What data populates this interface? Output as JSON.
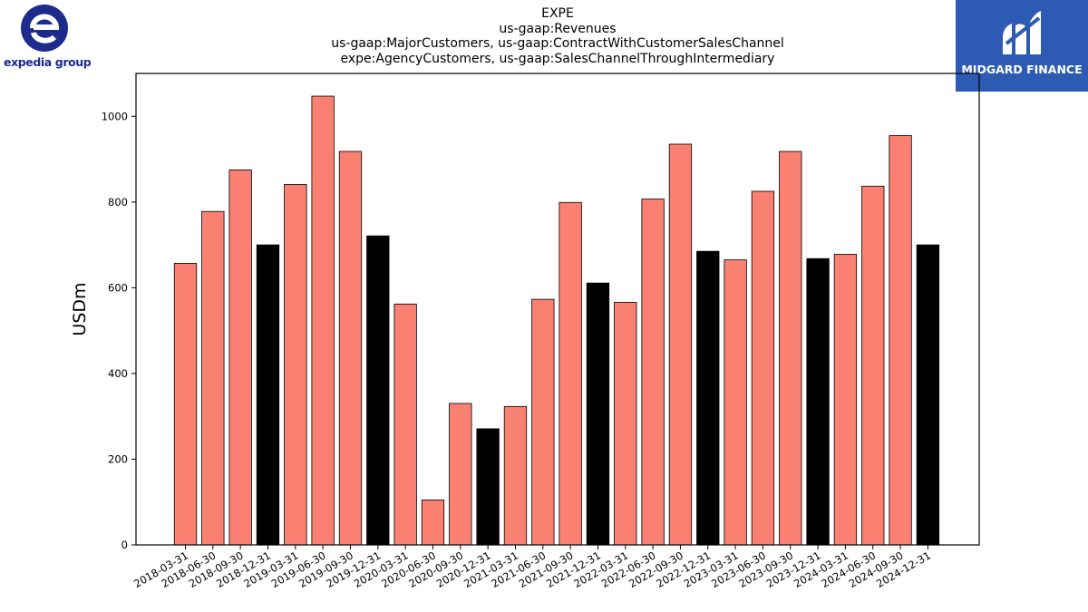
{
  "header": {
    "title_lines": [
      "EXPE",
      "us-gaap:Revenues",
      "us-gaap:MajorCustomers, us-gaap:ContractWithCustomerSalesChannel",
      "expe:AgencyCustomers, us-gaap:SalesChannelThroughIntermediary"
    ]
  },
  "logos": {
    "left": {
      "text": "expedia group",
      "color": "#1c2b8c"
    },
    "right": {
      "text": "MIDGARD FINANCE",
      "color": "#2d5bb3"
    }
  },
  "chart_data": {
    "type": "bar",
    "ylabel": "USDm",
    "ylim": [
      0,
      1100
    ],
    "yticks": [
      0,
      200,
      400,
      600,
      800,
      1000
    ],
    "grid": false,
    "colors": {
      "quarter": "#fa8072",
      "year_end": "#000000"
    },
    "categories": [
      "2018-03-31",
      "2018-06-30",
      "2018-09-30",
      "2018-12-31",
      "2019-03-31",
      "2019-06-30",
      "2019-09-30",
      "2019-12-31",
      "2020-03-31",
      "2020-06-30",
      "2020-09-30",
      "2020-12-31",
      "2021-03-31",
      "2021-06-30",
      "2021-09-30",
      "2021-12-31",
      "2022-03-31",
      "2022-06-30",
      "2022-09-30",
      "2022-12-31",
      "2023-03-31",
      "2023-06-30",
      "2023-09-30",
      "2023-12-31",
      "2024-03-31",
      "2024-06-30",
      "2024-09-30",
      "2024-12-31"
    ],
    "values": [
      657,
      778,
      875,
      700,
      841,
      1047,
      918,
      721,
      562,
      105,
      330,
      271,
      323,
      573,
      799,
      611,
      566,
      807,
      935,
      685,
      665,
      825,
      918,
      668,
      678,
      837,
      955,
      700
    ]
  }
}
